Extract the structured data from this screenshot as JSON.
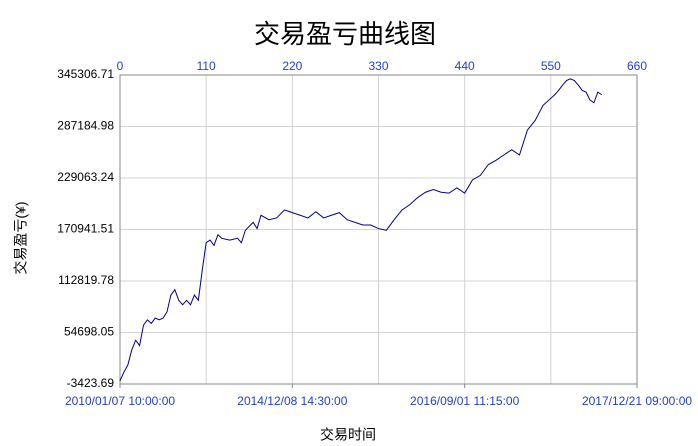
{
  "chart_data": {
    "type": "line",
    "title": "交易盈亏曲线图",
    "xlabel": "交易时间",
    "ylabel": "交易盈亏(¥)",
    "color": "#00008b",
    "tick_color": "#1f3fd6",
    "grid": true,
    "xlim": [
      0,
      660
    ],
    "xticks": [
      0,
      110,
      220,
      330,
      440,
      550,
      660
    ],
    "x2ticks": [
      {
        "value": 0,
        "label": "2010/01/07 10:00:00"
      },
      {
        "value": 220,
        "label": "2014/12/08 14:30:00"
      },
      {
        "value": 440,
        "label": "2016/09/01 11:15:00"
      },
      {
        "value": 660,
        "label": "2017/12/21 09:00:00"
      }
    ],
    "ylim": [
      -3423.69,
      345306.71
    ],
    "yticks": [
      -3423.69,
      54698.05,
      112819.78,
      170941.51,
      229063.24,
      287184.98,
      345306.71
    ],
    "x": [
      0,
      5,
      10,
      15,
      20,
      25,
      30,
      35,
      40,
      45,
      50,
      55,
      60,
      65,
      70,
      75,
      80,
      85,
      90,
      95,
      100,
      105,
      110,
      115,
      120,
      125,
      130,
      140,
      150,
      155,
      160,
      170,
      175,
      180,
      190,
      200,
      210,
      220,
      230,
      240,
      250,
      260,
      270,
      280,
      290,
      300,
      310,
      320,
      330,
      340,
      350,
      360,
      370,
      380,
      390,
      400,
      410,
      420,
      430,
      440,
      450,
      460,
      470,
      480,
      490,
      500,
      510,
      520,
      530,
      540,
      550,
      555,
      560,
      565,
      570,
      575,
      580,
      585,
      590,
      595,
      600,
      605,
      610,
      615
    ],
    "values": [
      0,
      10000,
      18000,
      35000,
      46000,
      40000,
      63000,
      69000,
      65000,
      71000,
      69000,
      71000,
      78000,
      97000,
      103000,
      91000,
      86000,
      91000,
      86000,
      97000,
      91000,
      125000,
      156000,
      159000,
      153000,
      165000,
      161000,
      159000,
      161000,
      156000,
      170000,
      179000,
      172000,
      187000,
      182000,
      184000,
      193000,
      190000,
      187000,
      184000,
      191000,
      184000,
      187000,
      190000,
      182000,
      179000,
      176000,
      176000,
      172000,
      170000,
      182000,
      193000,
      199000,
      207000,
      213000,
      216000,
      213000,
      212000,
      218000,
      212000,
      227000,
      232000,
      244000,
      249000,
      255000,
      261000,
      255000,
      283000,
      294000,
      311000,
      319000,
      323000,
      328000,
      334000,
      339000,
      341000,
      339000,
      334000,
      328000,
      326000,
      317000,
      314000,
      326000,
      323000
    ]
  }
}
